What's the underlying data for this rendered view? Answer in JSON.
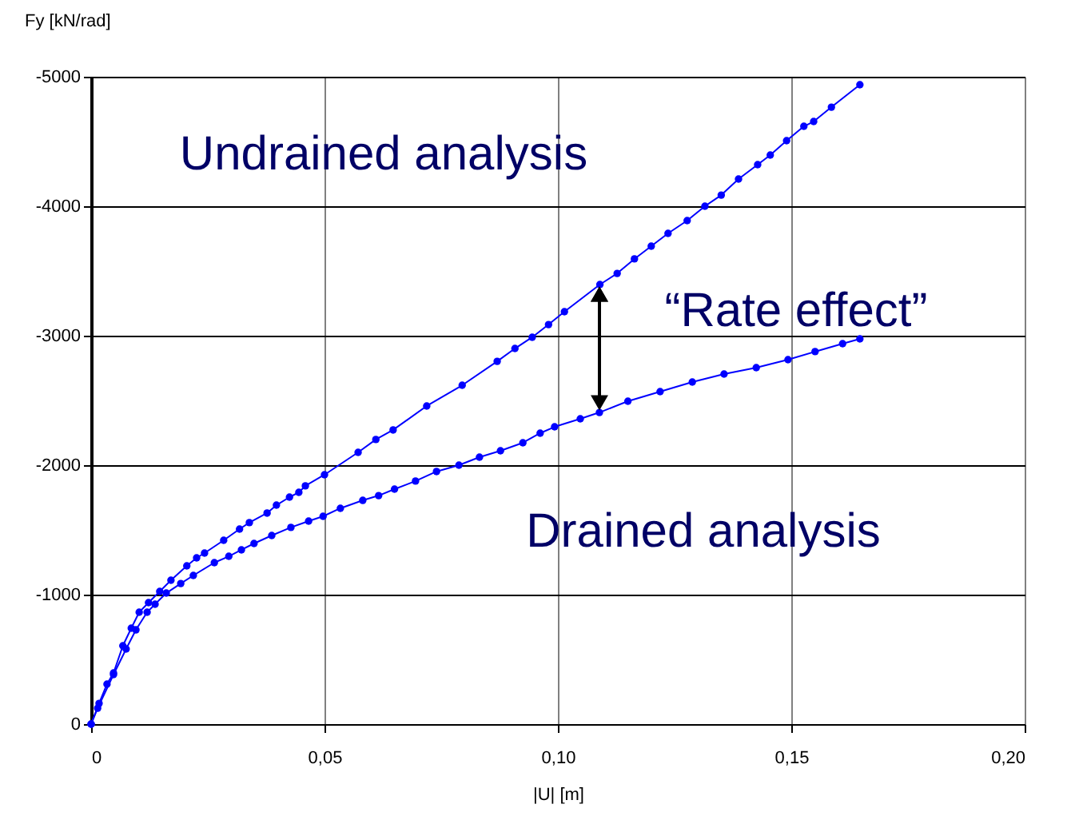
{
  "chart_data": {
    "type": "line",
    "xlabel": "|U| [m]",
    "ylabel": "Fy [kN/rad]",
    "xlim": [
      0,
      0.2
    ],
    "xticks": [
      0,
      {
        "value": 0.05,
        "label": "0,05"
      },
      {
        "value": 0.1,
        "label": "0,10"
      },
      {
        "value": 0.15,
        "label": "0,15"
      },
      {
        "value": 0.2,
        "label": "0,20"
      }
    ],
    "ylim": [
      0,
      -5000
    ],
    "yticks": [
      0,
      -1000,
      -2000,
      -3000,
      -4000,
      -5000
    ],
    "grid": true,
    "marker": "circle",
    "line_style": "solid",
    "annotations": [
      "“Rate effect”"
    ],
    "series": [
      {
        "name": "Undrained analysis",
        "color": "#0000ff",
        "x": [
          0,
          0.0017,
          0.0034,
          0.0048,
          0.0068,
          0.0086,
          0.0103,
          0.0123,
          0.0147,
          0.0171,
          0.0205,
          0.0226,
          0.0243,
          0.0284,
          0.0318,
          0.0339,
          0.0377,
          0.0397,
          0.0425,
          0.0445,
          0.0459,
          0.05,
          0.0572,
          0.061,
          0.0647,
          0.0719,
          0.0795,
          0.087,
          0.0908,
          0.0945,
          0.098,
          0.1014,
          0.109,
          0.1127,
          0.1164,
          0.12,
          0.1236,
          0.1277,
          0.1315,
          0.135,
          0.1387,
          0.1428,
          0.1455,
          0.149,
          0.1527,
          0.1548,
          0.1586,
          0.1647
        ],
        "values": [
          0,
          -160,
          -309,
          -395,
          -605,
          -741,
          -864,
          -938,
          -1025,
          -1111,
          -1222,
          -1284,
          -1321,
          -1420,
          -1506,
          -1556,
          -1630,
          -1691,
          -1753,
          -1790,
          -1840,
          -1926,
          -2099,
          -2198,
          -2272,
          -2457,
          -2617,
          -2802,
          -2901,
          -2988,
          -3086,
          -3185,
          -3395,
          -3481,
          -3593,
          -3691,
          -3790,
          -3889,
          -4000,
          -4086,
          -4210,
          -4321,
          -4395,
          -4506,
          -4617,
          -4654,
          -4765,
          -4938
        ]
      },
      {
        "name": "Drained analysis",
        "color": "#0000ff",
        "x": [
          0,
          0.0014,
          0.0048,
          0.0075,
          0.0096,
          0.012,
          0.0137,
          0.0161,
          0.0192,
          0.0219,
          0.0264,
          0.0295,
          0.0322,
          0.0349,
          0.0387,
          0.0428,
          0.0466,
          0.0497,
          0.0534,
          0.0582,
          0.0616,
          0.065,
          0.0695,
          0.074,
          0.0788,
          0.0832,
          0.0877,
          0.0925,
          0.0962,
          0.0993,
          0.1048,
          0.1089,
          0.115,
          0.1219,
          0.1288,
          0.1356,
          0.1425,
          0.1493,
          0.1551,
          0.161,
          0.1647
        ],
        "values": [
          0,
          -123,
          -383,
          -580,
          -728,
          -864,
          -926,
          -1012,
          -1086,
          -1148,
          -1247,
          -1296,
          -1346,
          -1395,
          -1457,
          -1519,
          -1568,
          -1605,
          -1667,
          -1728,
          -1765,
          -1815,
          -1877,
          -1951,
          -2000,
          -2062,
          -2111,
          -2173,
          -2247,
          -2296,
          -2358,
          -2407,
          -2494,
          -2568,
          -2642,
          -2704,
          -2753,
          -2815,
          -2877,
          -2938,
          -2975
        ]
      }
    ]
  }
}
